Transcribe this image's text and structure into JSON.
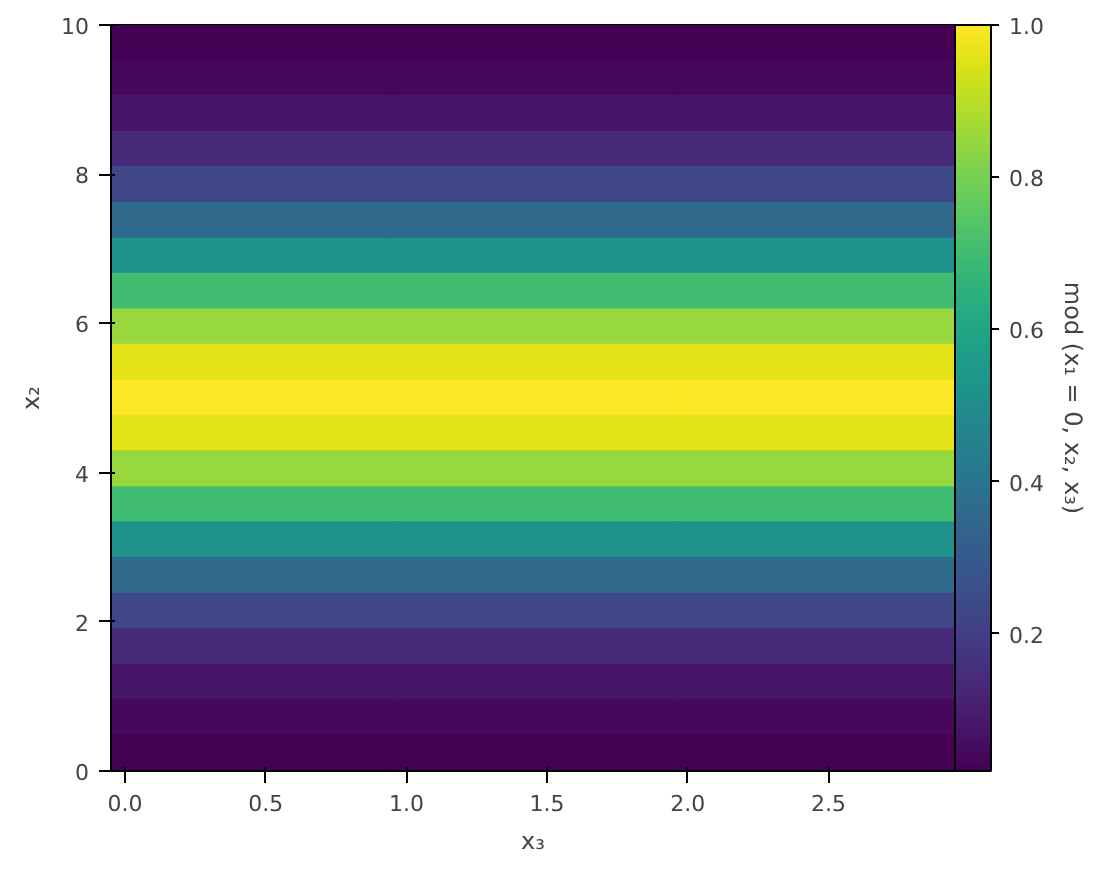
{
  "chart_data": {
    "type": "heatmap",
    "xlabel": "x₃",
    "ylabel": "x₂",
    "clabel": "mod (x₁ = 0, x₂, x₃)",
    "x": [
      0.45,
      1.45,
      2.45
    ],
    "y": [
      9.76,
      9.29,
      8.81,
      8.33,
      7.86,
      7.38,
      6.9,
      6.43,
      5.95,
      5.48,
      5.0,
      4.52,
      4.05,
      3.57,
      3.1,
      2.62,
      2.14,
      1.67,
      1.19,
      0.71,
      0.24
    ],
    "cells": [
      [
        0.02,
        0.02,
        0.02
      ],
      [
        0.04,
        0.04,
        0.04
      ],
      [
        0.08,
        0.08,
        0.08
      ],
      [
        0.14,
        0.14,
        0.14
      ],
      [
        0.23,
        0.23,
        0.23
      ],
      [
        0.36,
        0.36,
        0.36
      ],
      [
        0.52,
        0.52,
        0.52
      ],
      [
        0.7,
        0.7,
        0.7
      ],
      [
        0.85,
        0.85,
        0.85
      ],
      [
        0.96,
        0.96,
        0.96
      ],
      [
        1.0,
        1.0,
        1.0
      ],
      [
        0.96,
        0.96,
        0.96
      ],
      [
        0.85,
        0.85,
        0.85
      ],
      [
        0.7,
        0.7,
        0.7
      ],
      [
        0.52,
        0.52,
        0.52
      ],
      [
        0.36,
        0.36,
        0.36
      ],
      [
        0.23,
        0.23,
        0.23
      ],
      [
        0.14,
        0.14,
        0.14
      ],
      [
        0.08,
        0.08,
        0.08
      ],
      [
        0.04,
        0.04,
        0.04
      ],
      [
        0.02,
        0.02,
        0.02
      ]
    ],
    "xlim": [
      -0.05,
      2.95
    ],
    "xticks": [
      {
        "value": 0,
        "label": "0.0"
      },
      {
        "value": 0.5,
        "label": "0.5"
      },
      {
        "value": 1,
        "label": "1.0"
      },
      {
        "value": 1.5,
        "label": "1.5"
      },
      {
        "value": 2,
        "label": "2.0"
      },
      {
        "value": 2.5,
        "label": "2.5"
      }
    ],
    "ylim": [
      0,
      10
    ],
    "yticks": [
      0,
      2,
      4,
      6,
      8,
      10
    ],
    "clim": [
      0.02,
      1
    ],
    "cticks": [
      {
        "value": 0.2,
        "label": "0.2"
      },
      {
        "value": 0.4,
        "label": "0.4"
      },
      {
        "value": 0.6,
        "label": "0.6"
      },
      {
        "value": 0.8,
        "label": "0.8"
      },
      {
        "value": 1,
        "label": "1.0"
      }
    ]
  }
}
